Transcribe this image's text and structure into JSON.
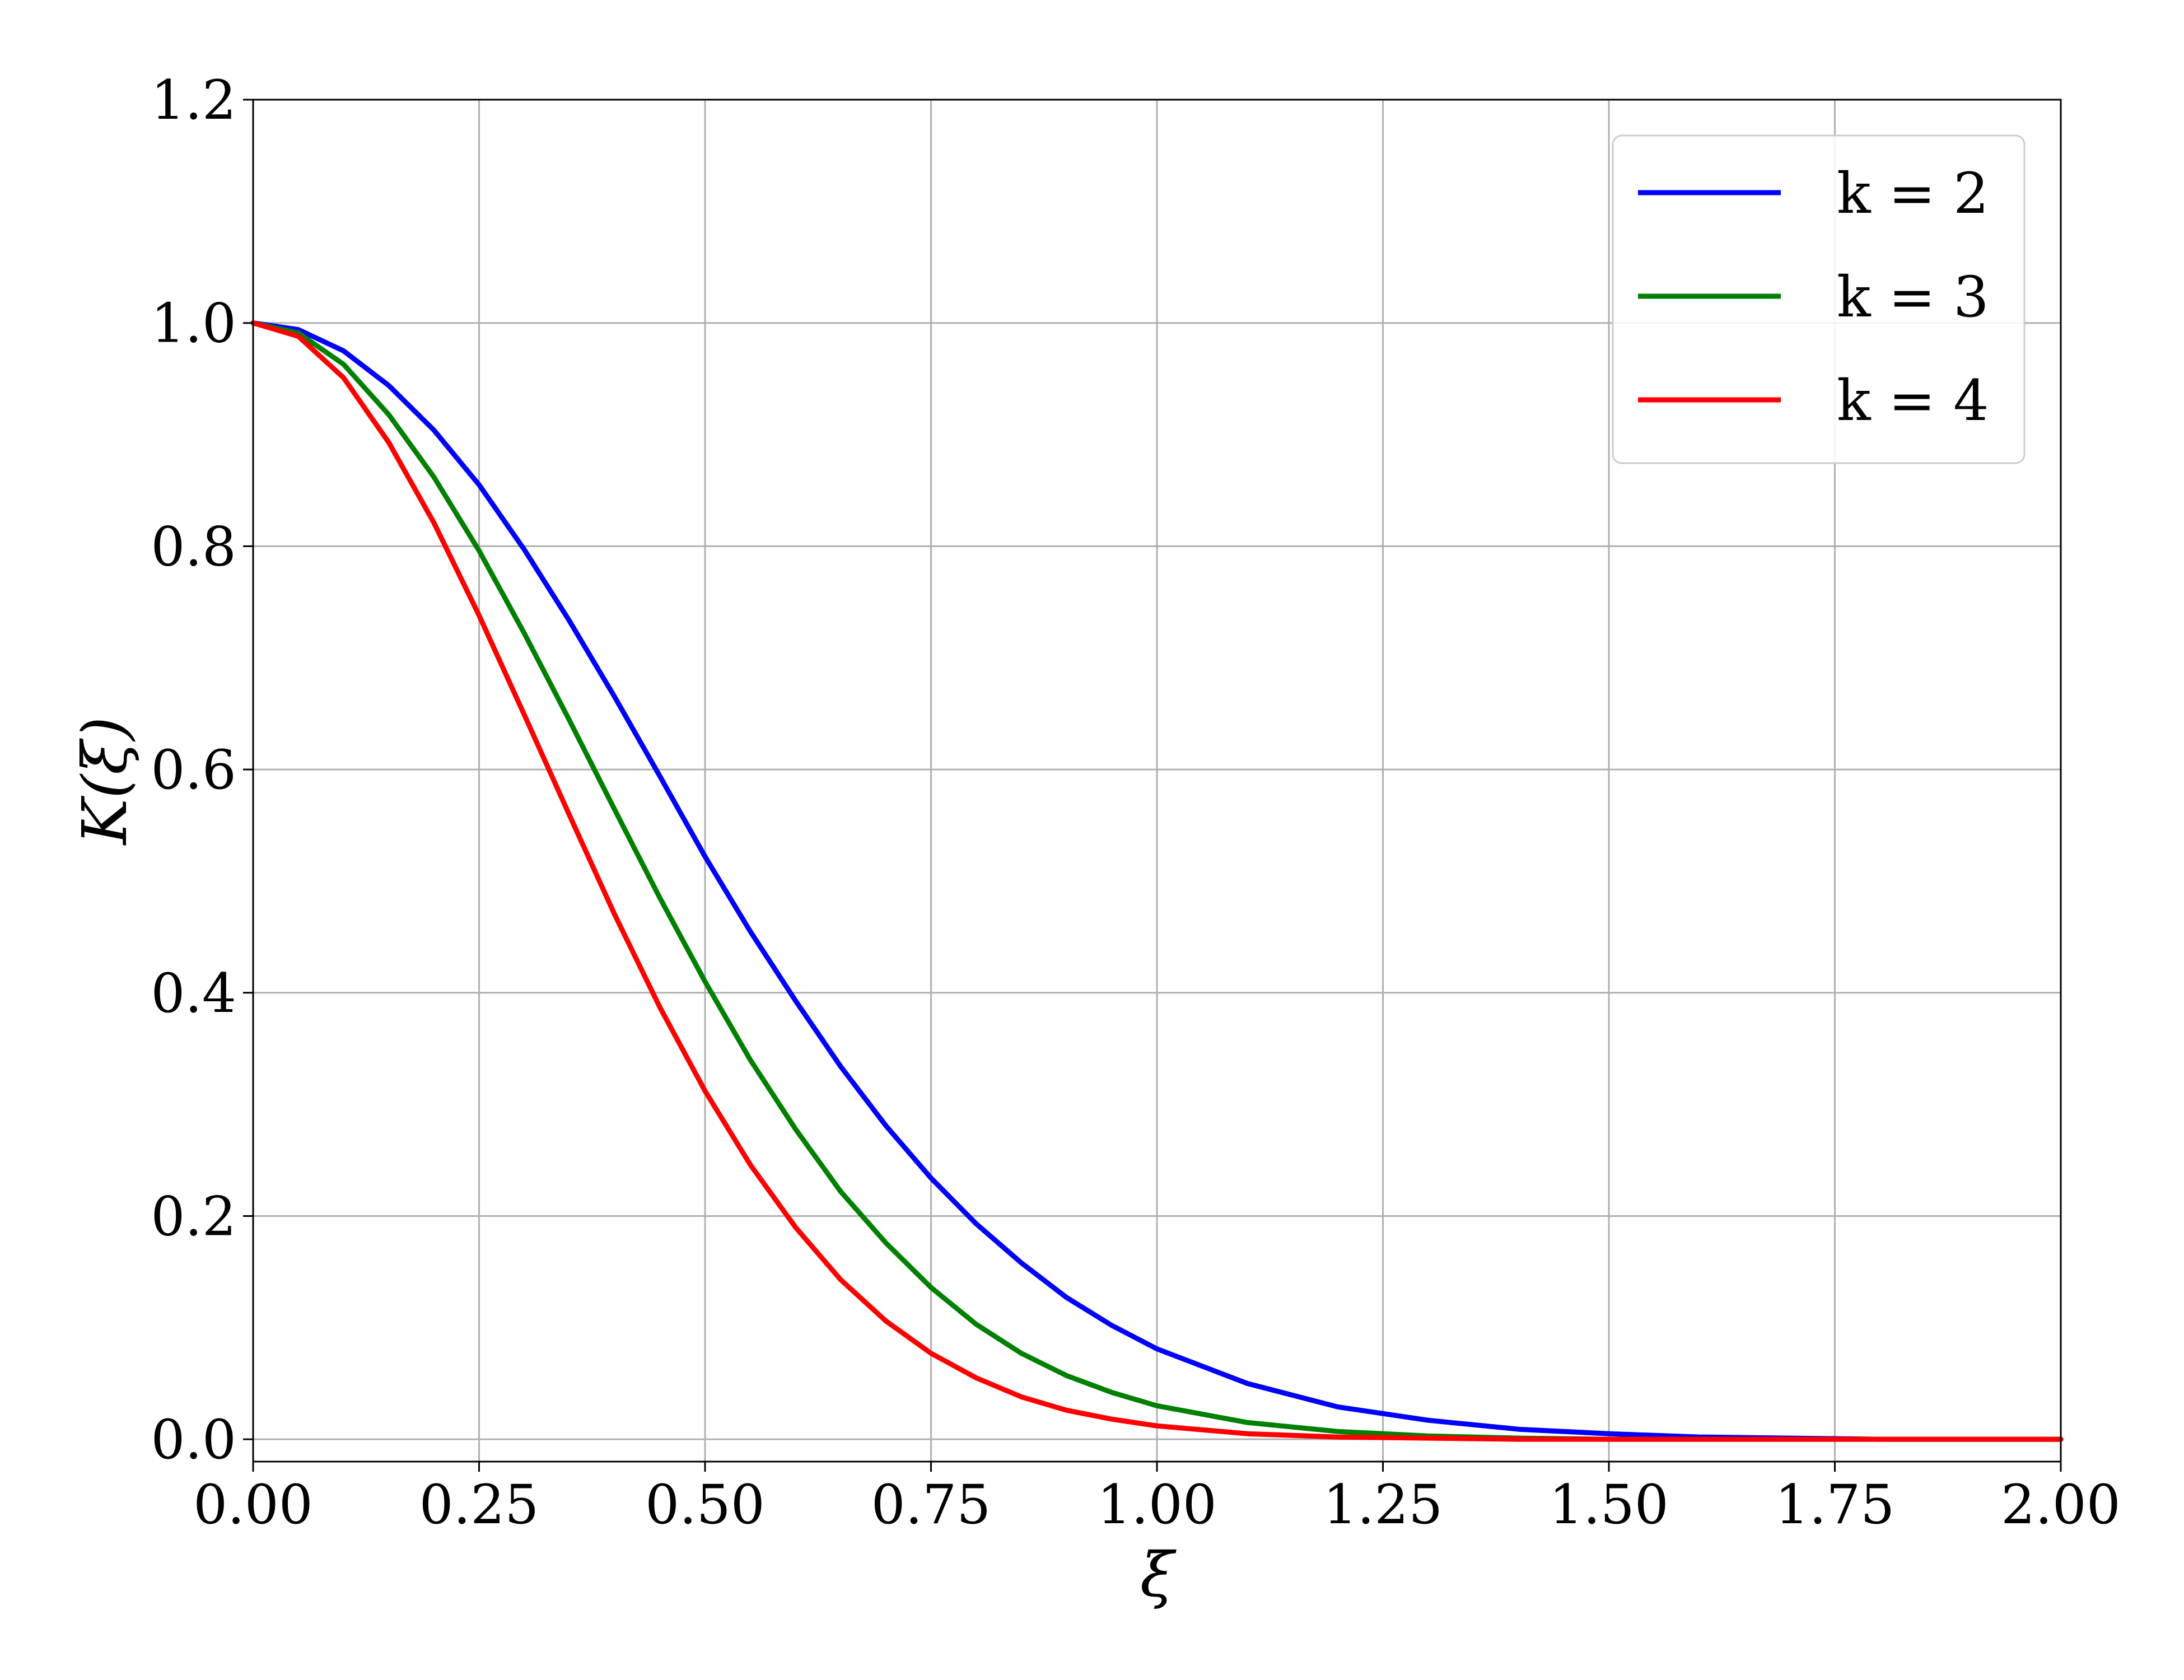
{
  "chart_data": {
    "type": "line",
    "title": "",
    "xlabel": "ξ",
    "ylabel": "K(ξ)",
    "xlim": [
      0,
      2
    ],
    "ylim": [
      -0.02,
      1.2
    ],
    "x_ticks": [
      "0.00",
      "0.25",
      "0.50",
      "0.75",
      "1.00",
      "1.25",
      "1.50",
      "1.75",
      "2.00"
    ],
    "y_ticks": [
      "0.0",
      "0.2",
      "0.4",
      "0.6",
      "0.8",
      "1.0",
      "1.2"
    ],
    "grid": true,
    "legend_position": "top-right",
    "x": [
      0.0,
      0.05,
      0.1,
      0.15,
      0.2,
      0.25,
      0.3,
      0.35,
      0.4,
      0.45,
      0.5,
      0.55,
      0.6,
      0.65,
      0.7,
      0.75,
      0.8,
      0.85,
      0.9,
      0.95,
      1.0,
      1.1,
      1.2,
      1.3,
      1.4,
      1.5,
      1.6,
      1.7,
      1.8,
      1.9,
      2.0
    ],
    "series": [
      {
        "name": "k = 2",
        "color": "#0000ff",
        "values": [
          1.0,
          0.994,
          0.975,
          0.944,
          0.904,
          0.855,
          0.797,
          0.733,
          0.665,
          0.594,
          0.522,
          0.455,
          0.393,
          0.334,
          0.281,
          0.234,
          0.193,
          0.158,
          0.127,
          0.102,
          0.081,
          0.05,
          0.029,
          0.017,
          0.009,
          0.005,
          0.002,
          0.001,
          0.0,
          0.0,
          0.0
        ]
      },
      {
        "name": "k = 3",
        "color": "#008000",
        "values": [
          1.0,
          0.991,
          0.963,
          0.918,
          0.862,
          0.796,
          0.722,
          0.644,
          0.564,
          0.485,
          0.41,
          0.34,
          0.278,
          0.222,
          0.176,
          0.136,
          0.103,
          0.077,
          0.057,
          0.042,
          0.03,
          0.015,
          0.007,
          0.003,
          0.001,
          0.0,
          0.0,
          0.0,
          0.0,
          0.0,
          0.0
        ]
      },
      {
        "name": "k = 4",
        "color": "#ff0000",
        "values": [
          1.0,
          0.988,
          0.951,
          0.893,
          0.821,
          0.738,
          0.649,
          0.559,
          0.47,
          0.387,
          0.312,
          0.246,
          0.19,
          0.143,
          0.106,
          0.077,
          0.055,
          0.038,
          0.026,
          0.018,
          0.012,
          0.005,
          0.002,
          0.001,
          0.0,
          0.0,
          0.0,
          0.0,
          0.0,
          0.0,
          0.0
        ]
      }
    ]
  }
}
